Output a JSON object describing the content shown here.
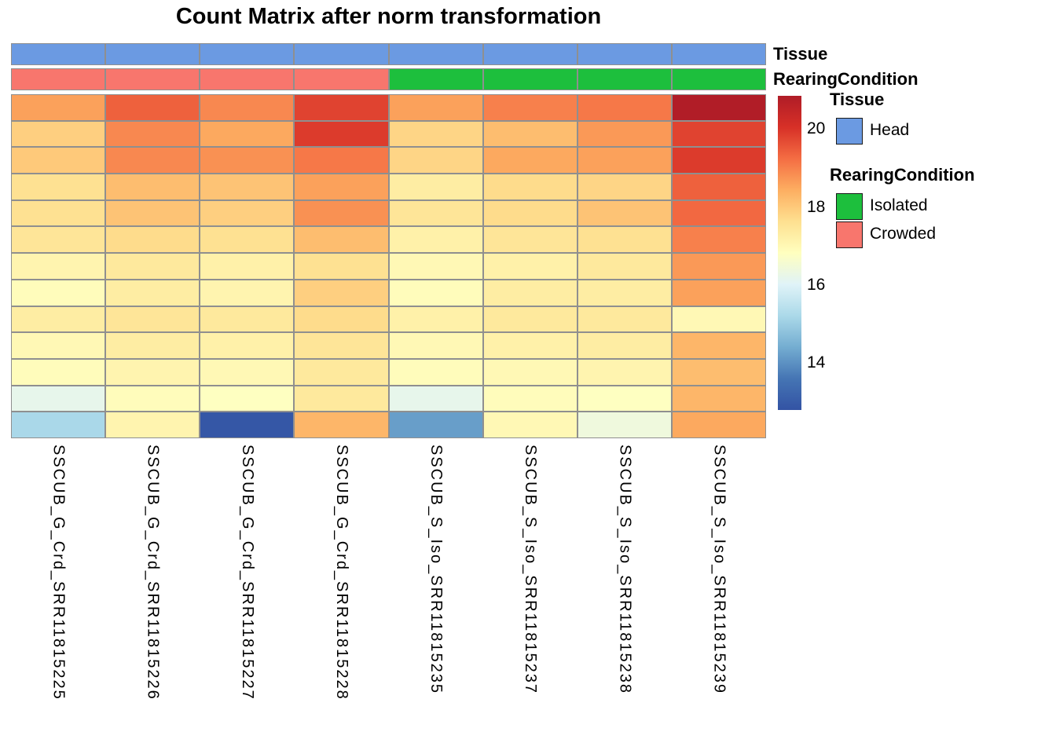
{
  "annotations": {
    "tissue_label": "Tissue",
    "rearing_label": "RearingCondition"
  },
  "colors": {
    "Head": "#6B9AE2",
    "Isolated": "#1DBF3D",
    "Crowded": "#F8766D"
  },
  "legend": {
    "groups": [
      {
        "title": "Tissue",
        "items": [
          "Head"
        ]
      },
      {
        "title": "RearingCondition",
        "items": [
          "Isolated",
          "Crowded"
        ]
      }
    ]
  },
  "chart_data": {
    "type": "heatmap",
    "title": "Count Matrix after norm transformation",
    "columns": [
      "SSCUB_G_Crd_SRR11815225",
      "SSCUB_G_Crd_SRR11815226",
      "SSCUB_G_Crd_SRR11815227",
      "SSCUB_G_Crd_SRR11815228",
      "SSCUB_S_Iso_SRR11815235",
      "SSCUB_S_Iso_SRR11815237",
      "SSCUB_S_Iso_SRR11815238",
      "SSCUB_S_Iso_SRR11815239"
    ],
    "col_annotations": {
      "Tissue": [
        "Head",
        "Head",
        "Head",
        "Head",
        "Head",
        "Head",
        "Head",
        "Head"
      ],
      "RearingCondition": [
        "Crowded",
        "Crowded",
        "Crowded",
        "Crowded",
        "Isolated",
        "Isolated",
        "Isolated",
        "Isolated"
      ]
    },
    "n_rows": 13,
    "values": [
      [
        18.6,
        19.4,
        18.9,
        19.8,
        18.6,
        19.0,
        19.1,
        20.8
      ],
      [
        17.9,
        18.9,
        18.5,
        19.9,
        17.8,
        18.2,
        18.7,
        19.8
      ],
      [
        18.0,
        18.9,
        18.8,
        19.1,
        17.8,
        18.5,
        18.6,
        19.9
      ],
      [
        17.6,
        18.2,
        18.1,
        18.6,
        17.3,
        17.7,
        17.8,
        19.4
      ],
      [
        17.6,
        18.1,
        17.9,
        18.8,
        17.5,
        17.7,
        18.1,
        19.3
      ],
      [
        17.5,
        17.7,
        17.6,
        18.2,
        17.2,
        17.5,
        17.6,
        19.0
      ],
      [
        17.1,
        17.4,
        17.2,
        17.6,
        17.0,
        17.2,
        17.4,
        18.7
      ],
      [
        16.9,
        17.3,
        17.1,
        17.9,
        16.9,
        17.3,
        17.3,
        18.6
      ],
      [
        17.3,
        17.5,
        17.4,
        17.7,
        17.2,
        17.4,
        17.4,
        17.0
      ],
      [
        17.0,
        17.3,
        17.2,
        17.5,
        17.0,
        17.2,
        17.3,
        18.3
      ],
      [
        16.9,
        17.1,
        17.0,
        17.4,
        16.9,
        17.0,
        17.1,
        18.2
      ],
      [
        16.2,
        16.9,
        16.8,
        17.4,
        16.2,
        16.9,
        16.8,
        18.3
      ],
      [
        15.2,
        17.1,
        12.9,
        18.3,
        14.2,
        17.0,
        16.4,
        18.5
      ]
    ],
    "scale": {
      "min": 12.8,
      "max": 20.85,
      "ticks": [
        20,
        18,
        16,
        14
      ],
      "colormap_name": "RdYlBu reversed",
      "stops": [
        [
          0.0,
          "#3353A4"
        ],
        [
          0.1,
          "#4575B4"
        ],
        [
          0.2,
          "#74ADD1"
        ],
        [
          0.3,
          "#ABD9E9"
        ],
        [
          0.4,
          "#E0F3F8"
        ],
        [
          0.5,
          "#FFFFBF"
        ],
        [
          0.6,
          "#FEE090"
        ],
        [
          0.7,
          "#FDAE61"
        ],
        [
          0.8,
          "#F46D43"
        ],
        [
          0.9,
          "#D73027"
        ],
        [
          1.0,
          "#AF1C27"
        ]
      ]
    }
  }
}
